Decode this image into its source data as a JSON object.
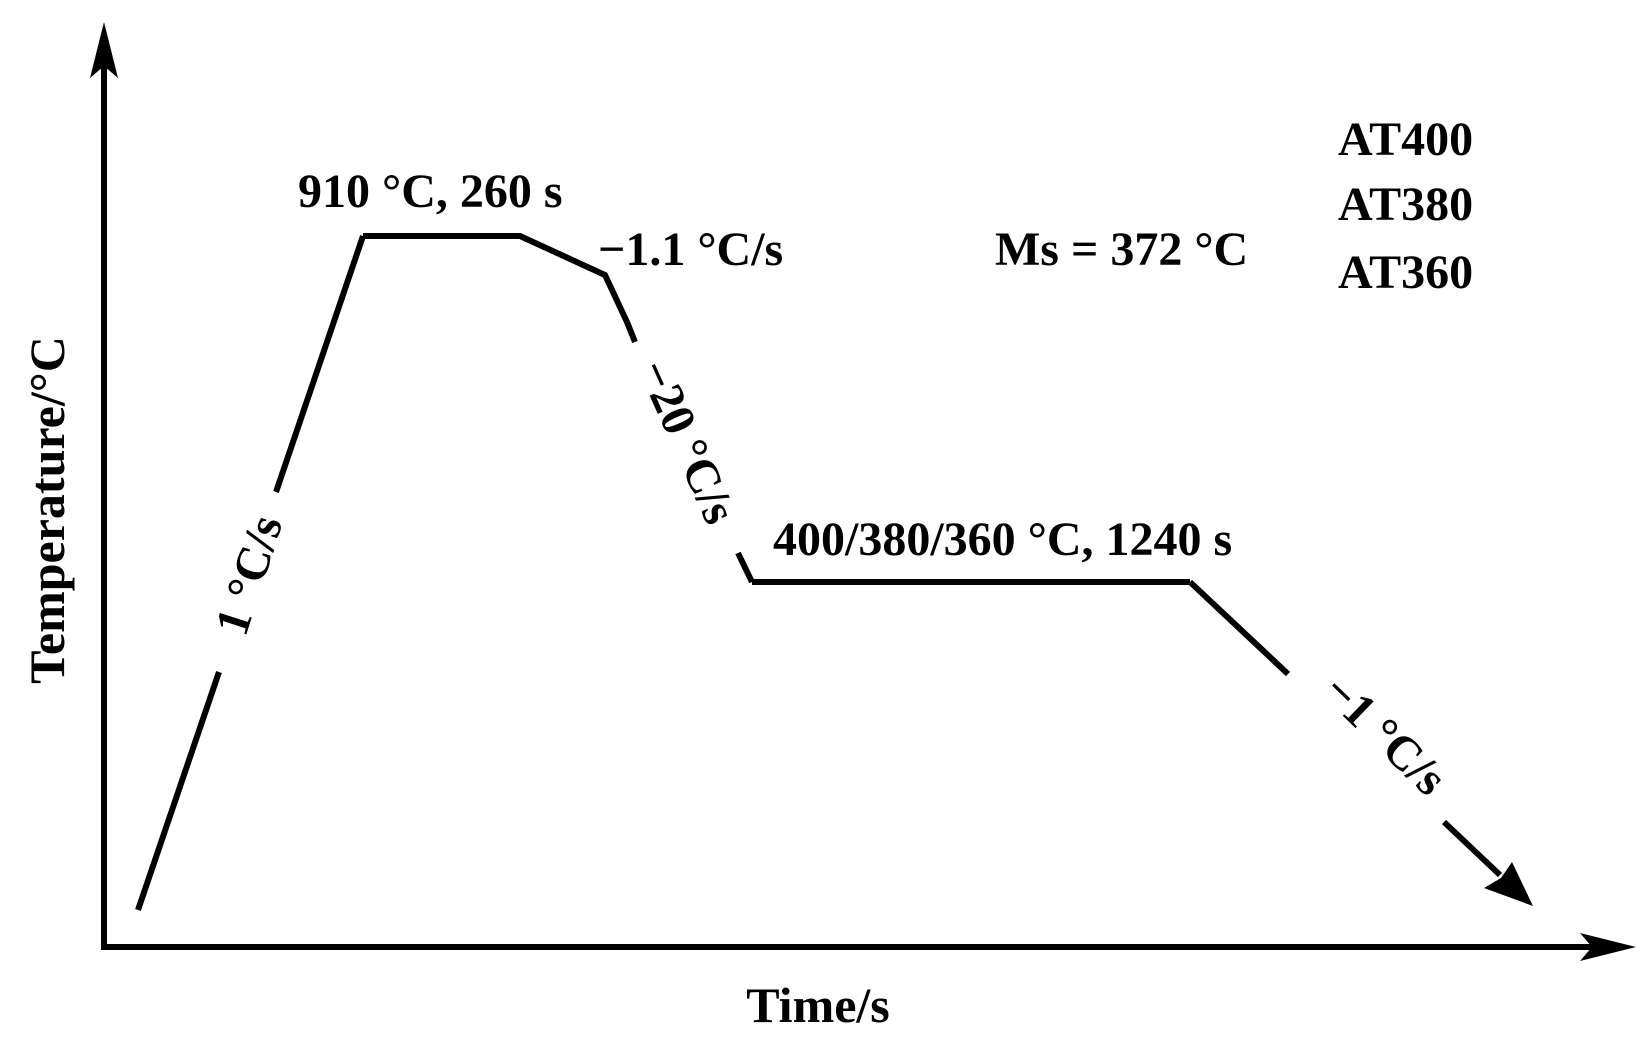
{
  "axes": {
    "xlabel": "Time/s",
    "ylabel": "Temperature/°C"
  },
  "annotations": {
    "heating_rate": "1 °C/s",
    "austenitize": "910 °C, 260 s",
    "slow_cool_rate": "−1.1 °C/s",
    "quench_rate": "−20 °C/s",
    "hold": "400/380/360 °C, 1240 s",
    "final_cool_rate": "−1 °C/s",
    "ms": "Ms = 372 °C"
  },
  "legend": {
    "items": [
      "AT400",
      "AT380",
      "AT360"
    ]
  },
  "colors": {
    "line": "#000000",
    "ms_text": "#e8141c"
  }
}
